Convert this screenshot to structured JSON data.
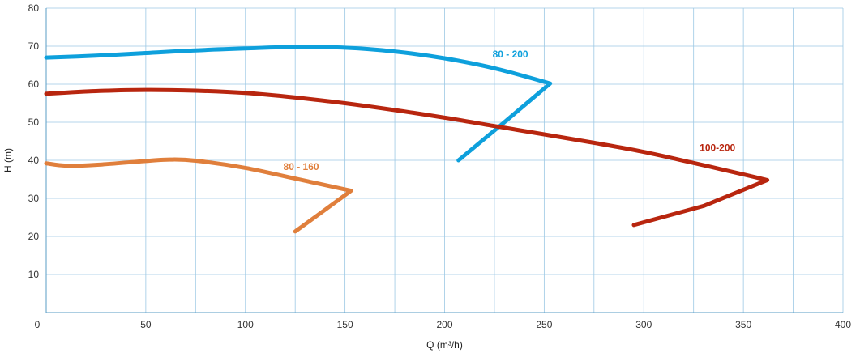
{
  "chart_data": {
    "type": "line",
    "title": "",
    "xlabel": "Q (m³/h)",
    "ylabel": "H (m)",
    "xlim": [
      0,
      400
    ],
    "ylim": [
      0,
      80
    ],
    "x_ticks": [
      0,
      50,
      100,
      150,
      200,
      250,
      300,
      350,
      400
    ],
    "y_ticks": [
      10,
      20,
      30,
      40,
      50,
      60,
      70,
      80
    ],
    "x_grid_step": 25,
    "y_grid_step": 10,
    "grid": true,
    "x_origin_label": "0",
    "series": [
      {
        "name": "80 - 200",
        "color": "#0ea0dc",
        "label_at": [
          233,
          67
        ],
        "points": [
          [
            0,
            67
          ],
          [
            25,
            67.5
          ],
          [
            50,
            68.2
          ],
          [
            75,
            68.9
          ],
          [
            100,
            69.4
          ],
          [
            125,
            69.8
          ],
          [
            150,
            69.6
          ],
          [
            175,
            68.6
          ],
          [
            200,
            66.8
          ],
          [
            225,
            64.2
          ],
          [
            253,
            60.2
          ],
          [
            230,
            50
          ],
          [
            207,
            40
          ]
        ]
      },
      {
        "name": "100-200",
        "color": "#b8260f",
        "label_at": [
          337,
          42.5
        ],
        "points": [
          [
            0,
            57.5
          ],
          [
            25,
            58.2
          ],
          [
            50,
            58.5
          ],
          [
            75,
            58.3
          ],
          [
            100,
            57.7
          ],
          [
            125,
            56.5
          ],
          [
            150,
            55
          ],
          [
            175,
            53.2
          ],
          [
            200,
            51.2
          ],
          [
            225,
            49
          ],
          [
            250,
            46.8
          ],
          [
            275,
            44.6
          ],
          [
            300,
            42.2
          ],
          [
            325,
            39.3
          ],
          [
            350,
            36.3
          ],
          [
            362,
            34.8
          ],
          [
            330,
            28
          ],
          [
            295,
            23
          ]
        ]
      },
      {
        "name": "80 - 160",
        "color": "#e07f3c",
        "label_at": [
          128,
          37.5
        ],
        "points": [
          [
            0,
            39.2
          ],
          [
            10,
            38.6
          ],
          [
            25,
            38.8
          ],
          [
            50,
            39.8
          ],
          [
            62,
            40.2
          ],
          [
            75,
            39.9
          ],
          [
            100,
            38
          ],
          [
            125,
            35.2
          ],
          [
            153,
            32
          ],
          [
            140,
            27
          ],
          [
            125,
            21.3
          ]
        ]
      }
    ]
  }
}
